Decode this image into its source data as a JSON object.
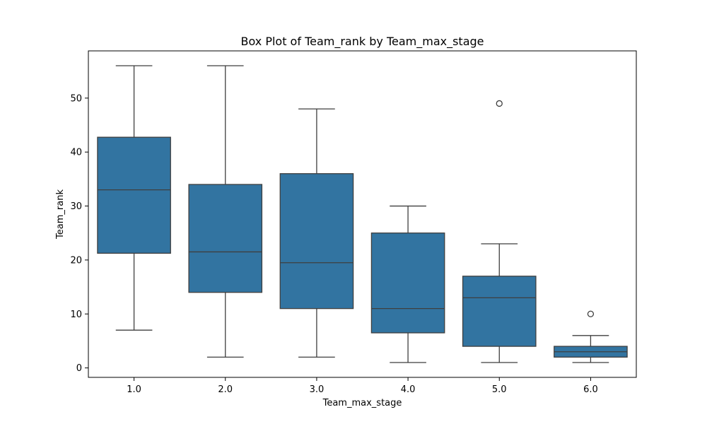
{
  "chart_data": {
    "type": "box",
    "title": "Box Plot of Team_rank by Team_max_stage",
    "xlabel": "Team_max_stage",
    "ylabel": "Team_rank",
    "categories": [
      "1.0",
      "2.0",
      "3.0",
      "4.0",
      "5.0",
      "6.0"
    ],
    "yticks": [
      "0",
      "10",
      "20",
      "30",
      "40",
      "50"
    ],
    "ylim": [
      -1.75,
      58.75
    ],
    "grid": false,
    "color": "#3274a1",
    "edge_color": "#3f3f3f",
    "boxes": [
      {
        "category": "1.0",
        "whisker_low": 7,
        "q1": 21.25,
        "median": 33,
        "q3": 42.75,
        "whisker_high": 56,
        "outliers": []
      },
      {
        "category": "2.0",
        "whisker_low": 2,
        "q1": 14,
        "median": 21.5,
        "q3": 34,
        "whisker_high": 56,
        "outliers": []
      },
      {
        "category": "3.0",
        "whisker_low": 2,
        "q1": 11,
        "median": 19.5,
        "q3": 36,
        "whisker_high": 48,
        "outliers": []
      },
      {
        "category": "4.0",
        "whisker_low": 1,
        "q1": 6.5,
        "median": 11,
        "q3": 25,
        "whisker_high": 30,
        "outliers": []
      },
      {
        "category": "5.0",
        "whisker_low": 1,
        "q1": 4,
        "median": 13,
        "q3": 17,
        "whisker_high": 23,
        "outliers": [
          49
        ]
      },
      {
        "category": "6.0",
        "whisker_low": 1,
        "q1": 2,
        "median": 3,
        "q3": 4,
        "whisker_high": 6,
        "outliers": [
          10
        ]
      }
    ]
  }
}
